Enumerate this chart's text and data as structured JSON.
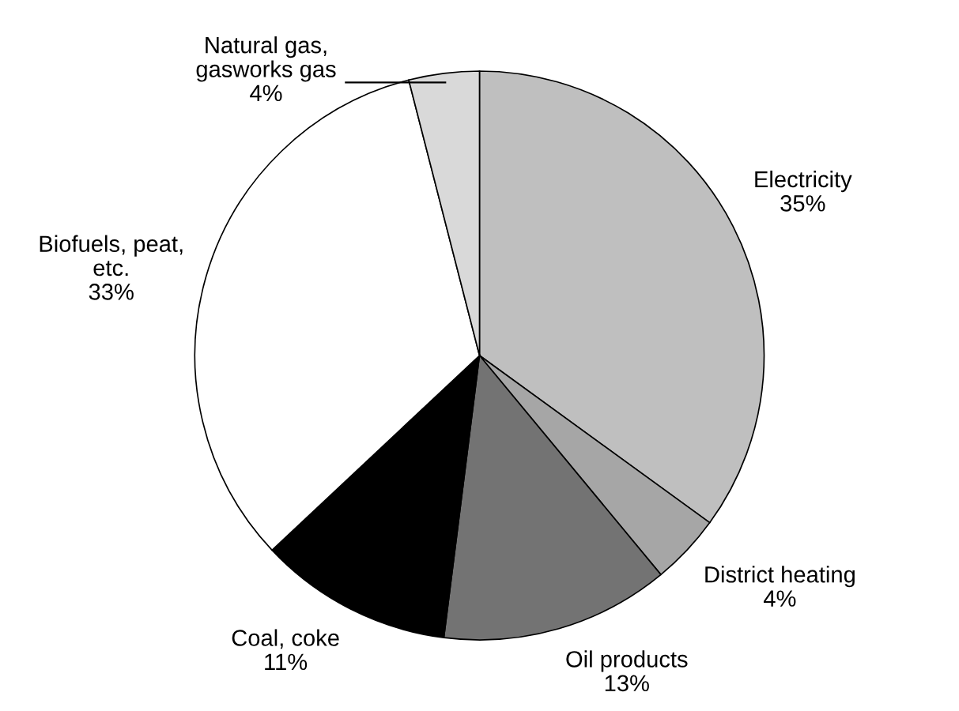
{
  "chart_data": {
    "type": "pie",
    "categories": [
      "Electricity",
      "District heating",
      "Oil products",
      "Coal, coke",
      "Biofuels, peat, etc.",
      "Natural gas, gasworks gas"
    ],
    "values": [
      35,
      4,
      13,
      11,
      33,
      4
    ],
    "colors": [
      "#bfbfbf",
      "#a6a6a6",
      "#737373",
      "#000000",
      "#ffffff",
      "#d9d9d9"
    ],
    "value_labels": [
      "35%",
      "4%",
      "13%",
      "11%",
      "33%",
      "4%"
    ],
    "legend": false
  }
}
